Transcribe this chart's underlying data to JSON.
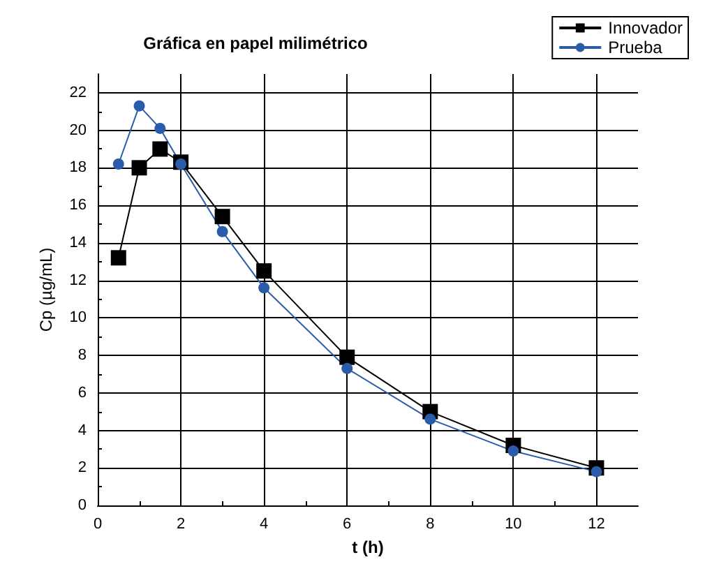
{
  "chart_data": {
    "type": "line",
    "title": "Gráfica en papel milimétrico",
    "xlabel": "t (h)",
    "ylabel": "Cp (µg/mL)",
    "x": [
      0.5,
      1,
      1.5,
      2,
      3,
      4,
      6,
      8,
      10,
      12
    ],
    "series": [
      {
        "name": "Innovador",
        "color": "#000000",
        "marker": "square",
        "values": [
          13.2,
          18,
          19,
          18.3,
          15.4,
          12.5,
          7.9,
          5.0,
          3.2,
          2.0
        ]
      },
      {
        "name": "Prueba",
        "color": "#2a5caa",
        "marker": "circle",
        "values": [
          18.2,
          21.3,
          20.1,
          18.2,
          14.6,
          11.6,
          7.3,
          4.6,
          2.9,
          1.8
        ]
      }
    ],
    "xlim": [
      0,
      13
    ],
    "xticks": [
      0,
      2,
      4,
      6,
      8,
      10,
      12
    ],
    "ylim": [
      0,
      23
    ],
    "yticks": [
      0,
      2,
      4,
      6,
      8,
      10,
      12,
      14,
      16,
      18,
      20,
      22
    ],
    "grid": true,
    "legend": "top right",
    "line_style": "solid"
  }
}
